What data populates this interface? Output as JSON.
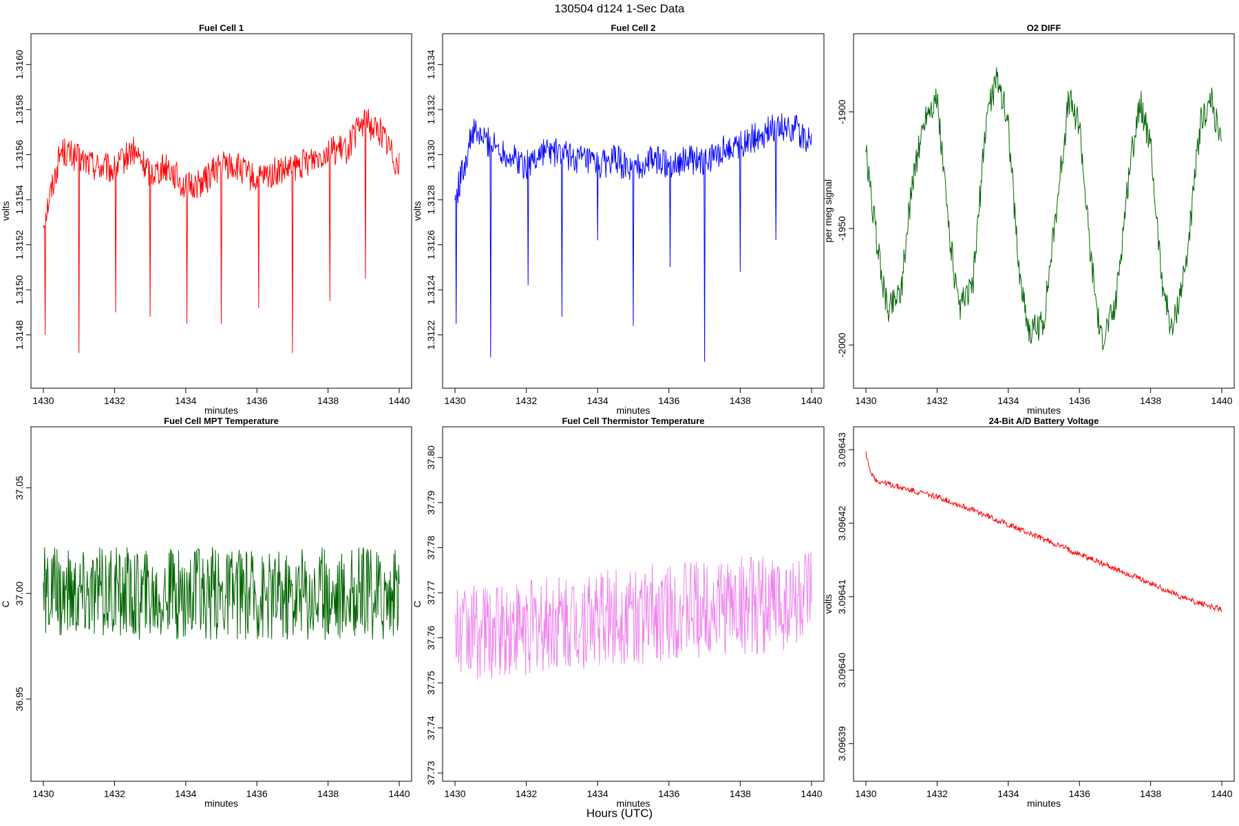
{
  "figure": {
    "title": "130504   d124   1-Sec Data",
    "footer": "Hours (UTC)"
  },
  "chart_data": [
    {
      "type": "line",
      "title": "Fuel Cell 1",
      "xlabel": "minutes",
      "ylabel": "volts",
      "color": "#ff0000",
      "xlim": [
        1430,
        1440
      ],
      "ylim": [
        1.3146,
        1.3161
      ],
      "xticks": [
        1430,
        1432,
        1434,
        1436,
        1438,
        1440
      ],
      "yticks": [
        1.3148,
        1.315,
        1.3152,
        1.3154,
        1.3156,
        1.3158,
        1.316
      ],
      "ytick_labels": [
        "1.3148",
        "1.3150",
        "1.3152",
        "1.3154",
        "1.3156",
        "1.3158",
        "1.3160"
      ],
      "x": [
        1430.0,
        1430.5,
        1431.0,
        1431.5,
        1432.0,
        1432.5,
        1433.0,
        1433.5,
        1434.0,
        1434.5,
        1435.0,
        1435.5,
        1436.0,
        1436.5,
        1437.0,
        1437.5,
        1438.0,
        1438.5,
        1439.0,
        1439.5,
        1440.0
      ],
      "values": [
        1.3153,
        1.31562,
        1.31558,
        1.31555,
        1.31553,
        1.31562,
        1.31552,
        1.31555,
        1.31545,
        1.31548,
        1.31556,
        1.31554,
        1.31548,
        1.31552,
        1.31553,
        1.31558,
        1.31562,
        1.31562,
        1.31575,
        1.3157,
        1.31555
      ],
      "spikes": [
        [
          1430.05,
          1.3148
        ],
        [
          1431.0,
          1.31472
        ],
        [
          1432.03,
          1.3149
        ],
        [
          1433.0,
          1.31488
        ],
        [
          1434.03,
          1.31485
        ],
        [
          1435.0,
          1.31485
        ],
        [
          1436.05,
          1.31492
        ],
        [
          1437.0,
          1.31472
        ],
        [
          1438.05,
          1.31495
        ],
        [
          1439.05,
          1.31505
        ]
      ]
    },
    {
      "type": "line",
      "title": "Fuel Cell 2",
      "xlabel": "minutes",
      "ylabel": "volts",
      "color": "#0000ff",
      "xlim": [
        1430,
        1440
      ],
      "ylim": [
        1.312,
        1.3135
      ],
      "xticks": [
        1430,
        1432,
        1434,
        1436,
        1438,
        1440
      ],
      "yticks": [
        1.3122,
        1.3124,
        1.3126,
        1.3128,
        1.313,
        1.3132,
        1.3134
      ],
      "ytick_labels": [
        "1.3122",
        "1.3124",
        "1.3126",
        "1.3128",
        "1.3130",
        "1.3132",
        "1.3134"
      ],
      "x": [
        1430.0,
        1430.5,
        1431.0,
        1431.5,
        1432.0,
        1432.5,
        1433.0,
        1433.5,
        1434.0,
        1434.5,
        1435.0,
        1435.5,
        1436.0,
        1436.5,
        1437.0,
        1437.5,
        1438.0,
        1438.5,
        1439.0,
        1439.5,
        1440.0
      ],
      "values": [
        1.3128,
        1.3131,
        1.31305,
        1.313,
        1.31295,
        1.31302,
        1.313,
        1.31298,
        1.31295,
        1.31298,
        1.31292,
        1.31298,
        1.31296,
        1.31298,
        1.31296,
        1.31302,
        1.31305,
        1.31308,
        1.31312,
        1.31312,
        1.31305
      ],
      "spikes": [
        [
          1430.03,
          1.31225
        ],
        [
          1431.0,
          1.3121
        ],
        [
          1432.05,
          1.31242
        ],
        [
          1433.0,
          1.31228
        ],
        [
          1434.0,
          1.31262
        ],
        [
          1435.0,
          1.31224
        ],
        [
          1436.03,
          1.3125
        ],
        [
          1437.0,
          1.31208
        ],
        [
          1438.0,
          1.31248
        ],
        [
          1439.0,
          1.31262
        ]
      ]
    },
    {
      "type": "line",
      "title": "O2 DIFF",
      "xlabel": "minutes",
      "ylabel": "per meg signal",
      "color": "#006400",
      "xlim": [
        1430,
        1440
      ],
      "ylim": [
        -2015,
        -1870
      ],
      "xticks": [
        1430,
        1432,
        1434,
        1436,
        1438,
        1440
      ],
      "yticks": [
        -2000,
        -1950,
        -1900
      ],
      "ytick_labels": [
        "-2000",
        "-1950",
        "-1900"
      ],
      "x": [
        1430.0,
        1430.3,
        1430.6,
        1431.0,
        1431.3,
        1431.7,
        1432.0,
        1432.3,
        1432.6,
        1433.0,
        1433.4,
        1433.7,
        1434.0,
        1434.3,
        1434.6,
        1435.0,
        1435.4,
        1435.7,
        1436.0,
        1436.3,
        1436.6,
        1437.0,
        1437.4,
        1437.7,
        1438.0,
        1438.3,
        1438.6,
        1439.0,
        1439.4,
        1439.7,
        1440.0
      ],
      "values": [
        -1918,
        -1955,
        -1985,
        -1975,
        -1930,
        -1900,
        -1895,
        -1945,
        -1985,
        -1975,
        -1900,
        -1885,
        -1905,
        -1968,
        -1995,
        -1990,
        -1935,
        -1895,
        -1905,
        -1960,
        -1998,
        -1985,
        -1925,
        -1895,
        -1915,
        -1970,
        -1995,
        -1965,
        -1905,
        -1895,
        -1915
      ]
    },
    {
      "type": "line",
      "title": "Fuel Cell MPT Temperature",
      "xlabel": "minutes",
      "ylabel": "C",
      "color": "#006400",
      "xlim": [
        1430,
        1440
      ],
      "ylim": [
        36.915,
        37.075
      ],
      "xticks": [
        1430,
        1432,
        1434,
        1436,
        1438,
        1440
      ],
      "yticks": [
        36.95,
        37.0,
        37.05
      ],
      "ytick_labels": [
        "36.95",
        "37.00",
        "37.05"
      ],
      "x": [
        1430.0,
        1440.0
      ],
      "values": [
        37.0,
        37.0
      ],
      "noise_amplitude": 0.022
    },
    {
      "type": "line",
      "title": "Fuel Cell Thermistor Temperature",
      "xlabel": "minutes",
      "ylabel": "C",
      "color": "#ee82ee",
      "xlim": [
        1430,
        1440
      ],
      "ylim": [
        37.73,
        37.805
      ],
      "xticks": [
        1430,
        1432,
        1434,
        1436,
        1438,
        1440
      ],
      "yticks": [
        37.73,
        37.74,
        37.75,
        37.76,
        37.77,
        37.78,
        37.79,
        37.8
      ],
      "ytick_labels": [
        "37.73",
        "37.74",
        "37.75",
        "37.76",
        "37.77",
        "37.78",
        "37.79",
        "37.80"
      ],
      "x": [
        1430.0,
        1432.0,
        1434.0,
        1436.0,
        1438.0,
        1440.0
      ],
      "values": [
        37.761,
        37.762,
        37.764,
        37.766,
        37.767,
        37.768
      ],
      "noise_amplitude": 0.011
    },
    {
      "type": "line",
      "title": "24-Bit A/D Battery Voltage",
      "xlabel": "minutes",
      "ylabel": "volts",
      "color": "#ff0000",
      "xlim": [
        1430,
        1440
      ],
      "ylim": [
        3.096386,
        3.096432
      ],
      "xticks": [
        1430,
        1432,
        1434,
        1436,
        1438,
        1440
      ],
      "yticks": [
        3.09639,
        3.0964,
        3.09641,
        3.09642,
        3.09643
      ],
      "ytick_labels": [
        "3.09639",
        "3.09640",
        "3.09641",
        "3.09642",
        "3.09643"
      ],
      "x": [
        1430.0,
        1430.1,
        1430.3,
        1431.0,
        1432.0,
        1433.0,
        1434.0,
        1435.0,
        1436.0,
        1437.0,
        1438.0,
        1439.0,
        1440.0
      ],
      "values": [
        3.0964296,
        3.0964272,
        3.0964258,
        3.0964248,
        3.0964236,
        3.0964218,
        3.0964198,
        3.0964178,
        3.0964158,
        3.0964138,
        3.0964118,
        3.0964097,
        3.0964082
      ],
      "noise_amplitude": 4e-07
    }
  ]
}
